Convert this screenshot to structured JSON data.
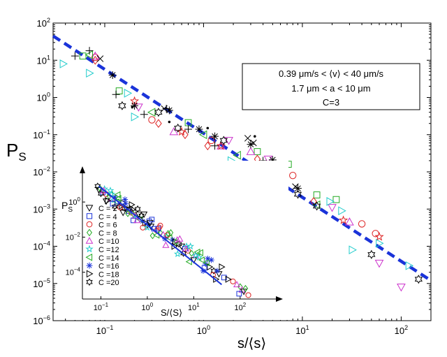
{
  "chart_data": {
    "type": "scatter",
    "scale": "log-log",
    "title": "",
    "xlabel_main": "s/⟨s⟩",
    "ylabel_main": "P",
    "ylabel_sub": "S",
    "xlim": [
      0.03,
      200
    ],
    "ylim": [
      1e-06,
      100
    ],
    "xticks": [
      {
        "value": 0.1,
        "base": "10",
        "exp": "−1"
      },
      {
        "value": 1,
        "base": "10",
        "exp": "0"
      },
      {
        "value": 10,
        "base": "10",
        "exp": "1"
      },
      {
        "value": 100,
        "base": "10",
        "exp": "2"
      }
    ],
    "yticks": [
      {
        "value": 1e-06,
        "base": "10",
        "exp": "−6"
      },
      {
        "value": 1e-05,
        "base": "10",
        "exp": "−5"
      },
      {
        "value": 0.0001,
        "base": "10",
        "exp": "−4"
      },
      {
        "value": 0.001,
        "base": "10",
        "exp": "−3"
      },
      {
        "value": 0.01,
        "base": "10",
        "exp": "−2"
      },
      {
        "value": 0.1,
        "base": "10",
        "exp": "−1"
      },
      {
        "value": 1,
        "base": "10",
        "exp": "0"
      },
      {
        "value": 10,
        "base": "10",
        "exp": "1"
      },
      {
        "value": 100,
        "base": "10",
        "exp": "2"
      }
    ],
    "annotation": {
      "line1": "0.39 μm/s < ⟨v⟩ < 40 μm/s",
      "line2": "1.7 μm < a < 10 μm",
      "line3": "C=3"
    },
    "fit_line": {
      "type": "power-law",
      "style": "dashed",
      "color": "#1a33d9",
      "points": [
        [
          0.03,
          45
        ],
        [
          200,
          1.2e-05
        ]
      ]
    },
    "series": [
      {
        "name": "C = 2",
        "marker": "triangle-down",
        "color": "#cc33cc",
        "points": [
          [
            0.22,
            0.55
          ],
          [
            1.8,
            0.07
          ],
          [
            4.5,
            0.022
          ],
          [
            20,
            0.0011
          ],
          [
            100,
            8e-06
          ],
          [
            60,
            3.5e-05
          ]
        ]
      },
      {
        "name": "C = 4",
        "marker": "square",
        "color": "#22aa22",
        "points": [
          [
            0.06,
            13
          ],
          [
            0.14,
            1.5
          ],
          [
            0.7,
            0.21
          ],
          [
            3.5,
            0.035
          ],
          [
            7.2,
            0.016
          ],
          [
            22,
            0.0018
          ],
          [
            14,
            0.0024
          ],
          [
            2.6,
            0.014
          ]
        ]
      },
      {
        "name": "C = 6",
        "marker": "circle",
        "color": "#dd2222",
        "points": [
          [
            0.08,
            12
          ],
          [
            0.3,
            0.25
          ],
          [
            1.2,
            0.07
          ],
          [
            6,
            0.008
          ],
          [
            40,
            0.0004
          ],
          [
            55,
            0.00022
          ],
          [
            8,
            0.008
          ]
        ]
      },
      {
        "name": "C = 8",
        "marker": "diamond",
        "color": "#dd2222",
        "points": [
          [
            0.08,
            10
          ],
          [
            0.35,
            0.2
          ],
          [
            1.1,
            0.05
          ],
          [
            3.5,
            0.022
          ],
          [
            13,
            0.0016
          ],
          [
            5.5,
            0.007
          ],
          [
            0.65,
            0.1
          ]
        ]
      },
      {
        "name": "C = 10",
        "marker": "triangle-up",
        "color": "#cc33cc",
        "points": [
          [
            0.08,
            13
          ],
          [
            0.5,
            0.12
          ],
          [
            3,
            0.035
          ],
          [
            30,
            0.00045
          ],
          [
            1.5,
            0.05
          ]
        ]
      },
      {
        "name": "C = 12",
        "marker": "star",
        "color": "#dd2222",
        "points": [
          [
            0.2,
            0.8
          ],
          [
            0.6,
            0.12
          ],
          [
            1.5,
            0.05
          ],
          [
            6.5,
            0.011
          ],
          [
            26,
            0.0005
          ],
          [
            60,
            0.00018
          ]
        ]
      },
      {
        "name": "C = 14",
        "marker": "triangle-left",
        "color": "#22aa22",
        "points": [
          [
            0.07,
            14
          ],
          [
            0.3,
            0.4
          ],
          [
            1.0,
            0.1
          ],
          [
            4.5,
            0.015
          ],
          [
            14,
            0.0013
          ],
          [
            2.2,
            0.028
          ]
        ]
      },
      {
        "name": "C = 16",
        "marker": "asterisk",
        "color": "#000000",
        "points": [
          [
            0.12,
            4
          ],
          [
            0.2,
            0.6
          ],
          [
            0.45,
            0.45
          ],
          [
            1.3,
            0.09
          ],
          [
            3,
            0.055
          ],
          [
            9,
            0.0036
          ],
          [
            0.9,
            0.14
          ],
          [
            5,
            0.021
          ]
        ]
      },
      {
        "name": "C = 18",
        "marker": "triangle-right",
        "color": "#22cccc",
        "points": [
          [
            0.038,
            8
          ],
          [
            0.07,
            4.5
          ],
          [
            0.17,
            1.3
          ],
          [
            0.2,
            0.3
          ],
          [
            1.9,
            0.02
          ],
          [
            5,
            0.014
          ],
          [
            25,
            0.0009
          ],
          [
            60,
            0.00012
          ],
          [
            120,
            3e-05
          ],
          [
            32,
            8e-05
          ],
          [
            19,
            0.0016
          ]
        ]
      },
      {
        "name": "C = 20",
        "marker": "hexagram",
        "color": "#000000",
        "points": [
          [
            0.15,
            0.6
          ],
          [
            0.35,
            0.4
          ],
          [
            0.55,
            0.15
          ],
          [
            1.6,
            0.07
          ],
          [
            9,
            0.0025
          ],
          [
            14,
            0.0012
          ],
          [
            50,
            6e-05
          ],
          [
            150,
            1.3e-05
          ],
          [
            6.5,
            0.014
          ]
        ]
      },
      {
        "name": "+",
        "marker": "plus",
        "color": "#000000",
        "points": [
          [
            0.05,
            13
          ],
          [
            0.07,
            18
          ],
          [
            0.13,
            1.2
          ],
          [
            0.25,
            0.35
          ],
          [
            0.42,
            0.5
          ],
          [
            0.7,
            0.14
          ],
          [
            1.3,
            0.05
          ],
          [
            4,
            0.02
          ]
        ]
      },
      {
        "name": "×",
        "marker": "cross",
        "color": "#000000",
        "points": [
          [
            0.09,
            11
          ],
          [
            0.4,
            0.5
          ],
          [
            2.8,
            0.08
          ],
          [
            3.2,
            0.06
          ],
          [
            8.5,
            0.004
          ]
        ]
      },
      {
        "name": "dot",
        "marker": "dot",
        "color": "#000000",
        "points": [
          [
            0.19,
            0.55
          ],
          [
            0.45,
            0.22
          ],
          [
            1.1,
            0.15
          ],
          [
            3.3,
            0.09
          ]
        ]
      }
    ],
    "inset": {
      "xlabel": "S/⟨S⟩",
      "ylabel_main": "P",
      "ylabel_sub": "S",
      "xticks": [
        {
          "value": 0.1,
          "base": "10",
          "exp": "−1"
        },
        {
          "value": 1,
          "base": "10",
          "exp": "0"
        },
        {
          "value": 10,
          "base": "10",
          "exp": "1"
        },
        {
          "value": 100,
          "base": "10",
          "exp": "2"
        }
      ],
      "yticks": [
        {
          "value": 1,
          "base": "10",
          "exp": "0"
        },
        {
          "value": 0.01,
          "base": "10",
          "exp": "−2"
        },
        {
          "value": 0.0001,
          "base": "10",
          "exp": "−4"
        }
      ],
      "xlim": [
        0.04,
        350
      ],
      "ylim": [
        3e-06,
        30
      ],
      "fit_line": {
        "color": "#1a33d9",
        "points": [
          [
            0.09,
            8
          ],
          [
            40,
            2e-05
          ]
        ]
      },
      "legend": [
        {
          "label": "C = 2",
          "marker": "triangle-down",
          "color": "#000000"
        },
        {
          "label": "C = 4",
          "marker": "square",
          "color": "#1a33d9"
        },
        {
          "label": "C = 6",
          "marker": "circle",
          "color": "#dd2222"
        },
        {
          "label": "C = 8",
          "marker": "diamond",
          "color": "#22aa22"
        },
        {
          "label": "C =10",
          "marker": "triangle-up",
          "color": "#cc33cc"
        },
        {
          "label": "C =12",
          "marker": "star",
          "color": "#22cccc"
        },
        {
          "label": "C =14",
          "marker": "triangle-left",
          "color": "#22aa22"
        },
        {
          "label": "C =16",
          "marker": "asterisk",
          "color": "#1a33d9"
        },
        {
          "label": "C =18",
          "marker": "triangle-right",
          "color": "#000000"
        },
        {
          "label": "C =20",
          "marker": "hexagram",
          "color": "#000000"
        }
      ],
      "markers": [
        "triangle-down",
        "square",
        "circle",
        "diamond",
        "triangle-up",
        "star",
        "triangle-left",
        "asterisk",
        "triangle-right",
        "hexagram"
      ],
      "colors": [
        "#000000",
        "#1a33d9",
        "#dd2222",
        "#22aa22",
        "#cc33cc",
        "#22cccc",
        "#22aa22",
        "#1a33d9",
        "#000000",
        "#000000"
      ],
      "points": [
        [
          0.09,
          5
        ],
        [
          0.11,
          3.5
        ],
        [
          0.13,
          2.8
        ],
        [
          0.15,
          2.2
        ],
        [
          0.17,
          1.6
        ],
        [
          0.19,
          1.3
        ],
        [
          0.22,
          1.0
        ],
        [
          0.25,
          0.8
        ],
        [
          0.28,
          0.6
        ],
        [
          0.32,
          0.45
        ],
        [
          0.36,
          0.36
        ],
        [
          0.4,
          0.3
        ],
        [
          0.45,
          0.25
        ],
        [
          0.5,
          0.2
        ],
        [
          0.55,
          0.16
        ],
        [
          0.6,
          0.13
        ],
        [
          0.7,
          0.1
        ],
        [
          0.8,
          0.08
        ],
        [
          0.9,
          0.065
        ],
        [
          1.0,
          0.05
        ],
        [
          1.2,
          0.04
        ],
        [
          1.4,
          0.03
        ],
        [
          1.6,
          0.024
        ],
        [
          1.9,
          0.018
        ],
        [
          2.2,
          0.014
        ],
        [
          2.6,
          0.011
        ],
        [
          3.0,
          0.009
        ],
        [
          3.5,
          0.007
        ],
        [
          4.0,
          0.0055
        ],
        [
          4.8,
          0.004
        ],
        [
          5.5,
          0.003
        ],
        [
          6.5,
          0.0022
        ],
        [
          7.5,
          0.0017
        ],
        [
          9,
          0.0012
        ],
        [
          11,
          0.0009
        ],
        [
          13,
          0.0007
        ],
        [
          15,
          0.0005
        ],
        [
          18,
          0.0003
        ],
        [
          22,
          0.0002
        ],
        [
          27,
          0.00012
        ],
        [
          35,
          8e-05
        ],
        [
          45,
          5e-05
        ],
        [
          70,
          3e-05
        ],
        [
          100,
          1.5e-05
        ],
        [
          110,
          1e-05
        ],
        [
          0.12,
          5.5
        ],
        [
          0.16,
          2.6
        ],
        [
          0.2,
          1.9
        ],
        [
          0.3,
          0.9
        ],
        [
          0.42,
          0.42
        ],
        [
          0.65,
          0.2
        ],
        [
          1.1,
          0.08
        ],
        [
          1.8,
          0.035
        ],
        [
          2.8,
          0.016
        ],
        [
          4.4,
          0.007
        ],
        [
          7,
          0.003
        ],
        [
          12,
          0.0014
        ],
        [
          20,
          0.0006
        ],
        [
          0.14,
          1.2
        ],
        [
          0.2,
          0.55
        ],
        [
          0.3,
          0.25
        ],
        [
          0.5,
          0.09
        ],
        [
          0.8,
          0.035
        ],
        [
          1.3,
          0.012
        ],
        [
          2.5,
          0.0035
        ],
        [
          4.5,
          0.0011
        ],
        [
          8,
          0.0004
        ],
        [
          16,
          0.00012
        ],
        [
          30,
          4e-05
        ],
        [
          0.1,
          3
        ],
        [
          0.13,
          1.1
        ],
        [
          0.18,
          0.8
        ],
        [
          0.26,
          0.5
        ],
        [
          0.38,
          0.22
        ],
        [
          0.6,
          0.09
        ],
        [
          1.0,
          0.035
        ],
        [
          1.6,
          0.013
        ],
        [
          2.4,
          0.008
        ],
        [
          3.8,
          0.003
        ],
        [
          6,
          0.0012
        ],
        [
          10,
          0.0005
        ],
        [
          17,
          0.00018
        ],
        [
          26,
          7e-05
        ],
        [
          0.095,
          6
        ],
        [
          0.115,
          4.5
        ],
        [
          0.17,
          2.8
        ],
        [
          0.24,
          1.6
        ],
        [
          0.34,
          0.8
        ],
        [
          0.48,
          0.38
        ],
        [
          0.75,
          0.17
        ],
        [
          1.15,
          0.065
        ],
        [
          1.7,
          0.03
        ],
        [
          2.7,
          0.013
        ],
        [
          4.2,
          0.0055
        ],
        [
          6.8,
          0.0022
        ],
        [
          11,
          0.0009
        ],
        [
          19,
          0.00035
        ],
        [
          32,
          0.00012
        ],
        [
          55,
          4e-05
        ],
        [
          0.085,
          8
        ],
        [
          120,
          8e-06
        ],
        [
          95,
          6e-06
        ],
        [
          150,
          5e-06
        ],
        [
          130,
          1.2e-05
        ],
        [
          85,
          2e-05
        ],
        [
          0.16,
          4.5
        ],
        [
          0.23,
          2.6
        ],
        [
          0.33,
          1.4
        ],
        [
          0.46,
          0.7
        ],
        [
          0.62,
          0.4
        ],
        [
          0.85,
          0.2
        ],
        [
          1.25,
          0.1
        ],
        [
          1.9,
          0.045
        ],
        [
          3.2,
          0.018
        ],
        [
          5,
          0.008
        ],
        [
          8.5,
          0.003
        ],
        [
          14,
          0.0013
        ],
        [
          24,
          0.0005
        ],
        [
          40,
          0.0002
        ]
      ]
    }
  }
}
